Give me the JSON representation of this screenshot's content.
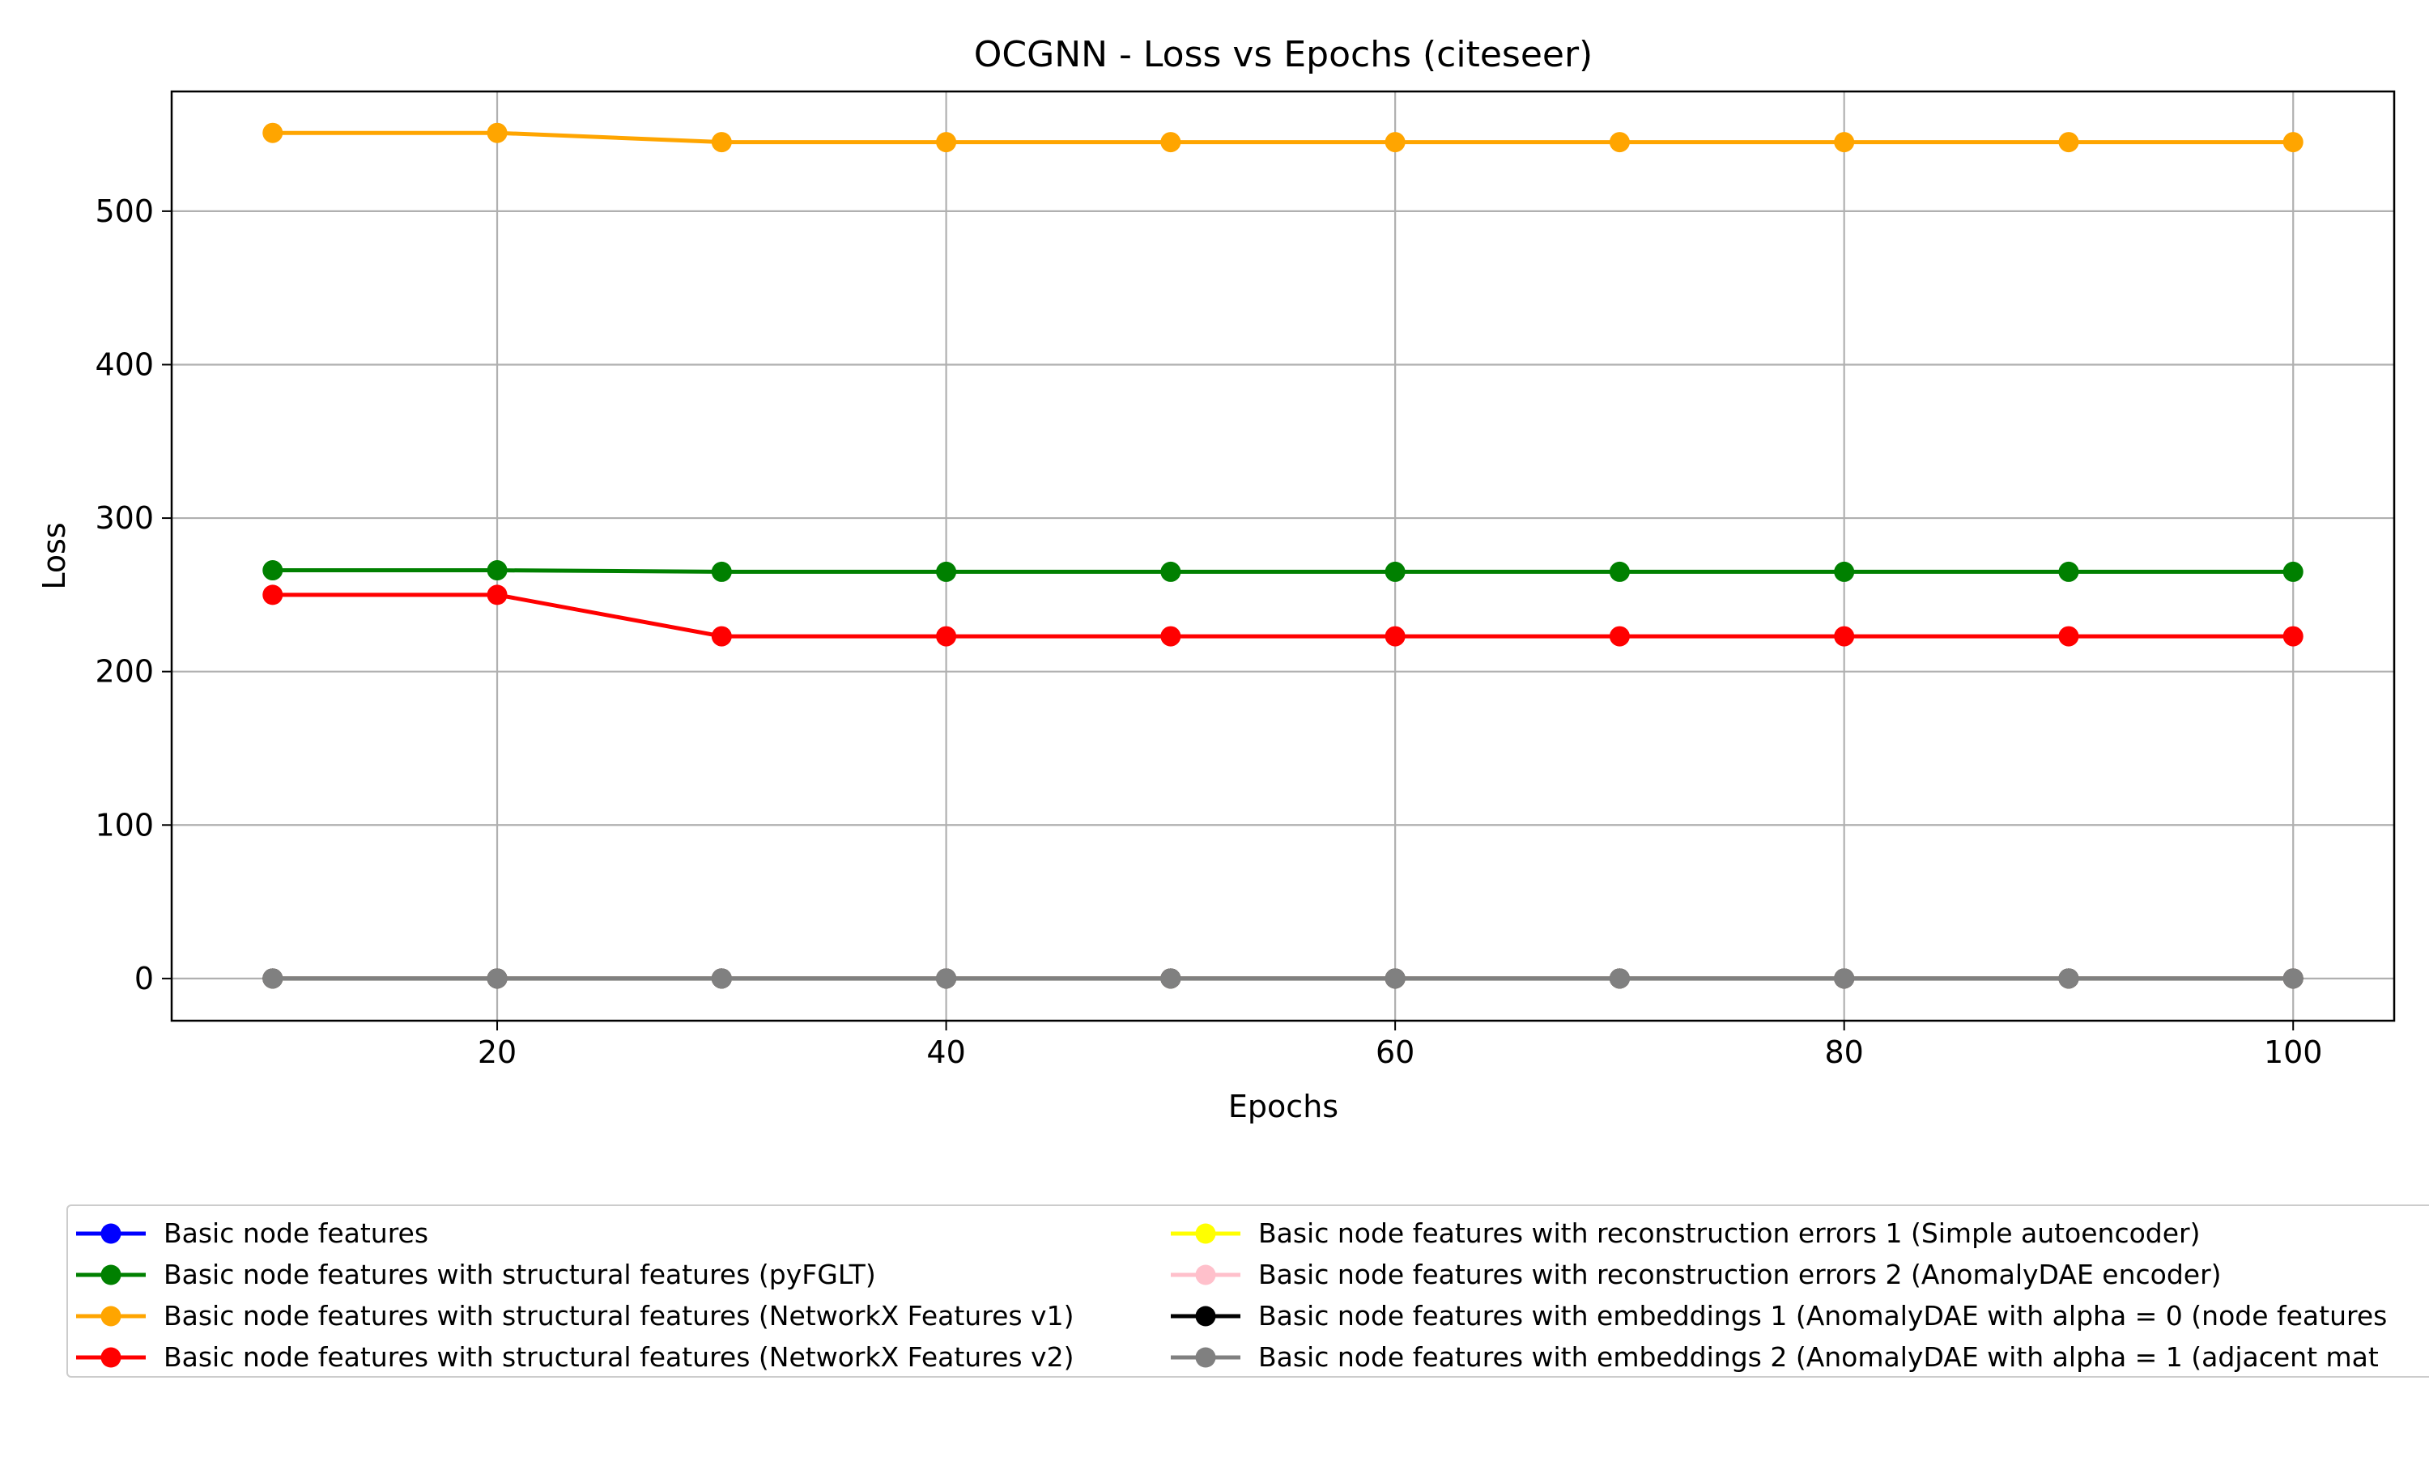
{
  "chart_data": {
    "type": "line",
    "title": "OCGNN - Loss vs Epochs (citeseer)",
    "xlabel": "Epochs",
    "ylabel": "Loss",
    "x": [
      10,
      20,
      30,
      40,
      50,
      60,
      70,
      80,
      90,
      100
    ],
    "xlim": [
      5.5,
      104.5
    ],
    "ylim": [
      -27.5,
      578
    ],
    "xticks": [
      20,
      40,
      60,
      80,
      100
    ],
    "yticks": [
      0,
      100,
      200,
      300,
      400,
      500
    ],
    "grid": true,
    "legend_position": "bottom",
    "series": [
      {
        "name": "Basic node features",
        "color": "#0000ff",
        "values": [
          0.02,
          0.02,
          0.02,
          0.02,
          0.02,
          0.02,
          0.02,
          0.02,
          0.02,
          0.02
        ]
      },
      {
        "name": "Basic node features with structural features (pyFGLT)",
        "color": "#008000",
        "values": [
          266,
          266,
          265,
          265,
          265,
          265,
          265,
          265,
          265,
          265
        ]
      },
      {
        "name": "Basic node features with structural features (NetworkX Features v1)",
        "color": "#ffa500",
        "values": [
          551,
          551,
          545,
          545,
          545,
          545,
          545,
          545,
          545,
          545
        ]
      },
      {
        "name": "Basic node features with structural features (NetworkX Features v2)",
        "color": "#ff0000",
        "values": [
          250,
          250,
          223,
          223,
          223,
          223,
          223,
          223,
          223,
          223
        ]
      },
      {
        "name": "Basic node features with reconstruction errors 1 (Simple autoencoder)",
        "color": "#ffff00",
        "values": [
          0.02,
          0.02,
          0.02,
          0.02,
          0.02,
          0.02,
          0.02,
          0.02,
          0.02,
          0.02
        ]
      },
      {
        "name": "Basic node features with reconstruction errors 2 (AnomalyDAE encoder)",
        "color": "#ffc0cb",
        "values": [
          0.02,
          0.02,
          0.02,
          0.02,
          0.02,
          0.02,
          0.02,
          0.02,
          0.02,
          0.02
        ]
      },
      {
        "name": "Basic node features with embeddings 1 (AnomalyDAE with alpha = 0 (node features",
        "color": "#000000",
        "values": [
          0.02,
          0.02,
          0.02,
          0.02,
          0.02,
          0.02,
          0.02,
          0.02,
          0.02,
          0.02
        ]
      },
      {
        "name": "Basic node features with embeddings 2 (AnomalyDAE with alpha = 1 (adjacent mat",
        "color": "#808080",
        "values": [
          0.02,
          0.02,
          0.02,
          0.02,
          0.02,
          0.02,
          0.02,
          0.02,
          0.02,
          0.02
        ]
      }
    ]
  }
}
